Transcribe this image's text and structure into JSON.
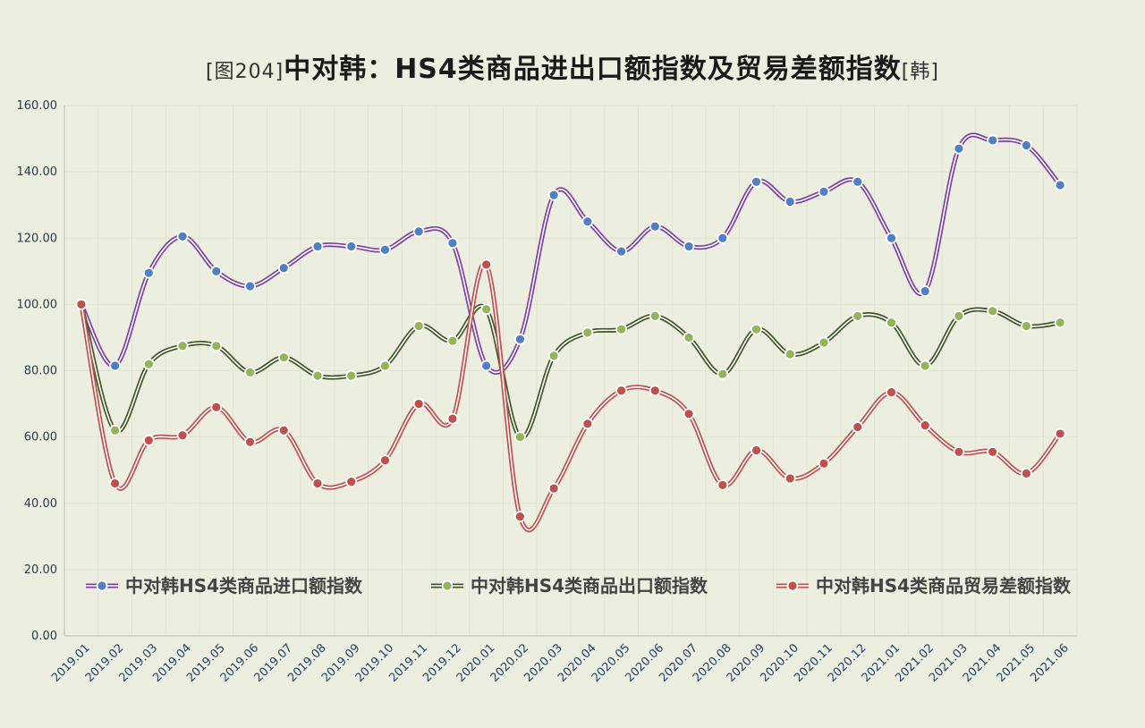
{
  "chart_data": {
    "type": "line",
    "title_prefix": "[图204]",
    "title_main": "中对韩：HS4类商品进出口额指数及贸易差额指数",
    "title_suffix": "[韩]",
    "x": [
      "2019.01",
      "2019.02",
      "2019.03",
      "2019.04",
      "2019.05",
      "2019.06",
      "2019.07",
      "2019.08",
      "2019.09",
      "2019.10",
      "2019.11",
      "2019.12",
      "2020.01",
      "2020.02",
      "2020.03",
      "2020.04",
      "2020.05",
      "2020.06",
      "2020.07",
      "2020.08",
      "2020.09",
      "2020.10",
      "2020.11",
      "2020.12",
      "2021.01",
      "2021.02",
      "2021.03",
      "2021.04",
      "2021.05",
      "2021.06"
    ],
    "ylim": [
      0,
      160
    ],
    "yticks": [
      "0.00",
      "20.00",
      "40.00",
      "60.00",
      "80.00",
      "100.00",
      "120.00",
      "140.00",
      "160.00"
    ],
    "grid": true,
    "legend_position": "bottom-inside",
    "series": [
      {
        "name": "中对韩HS4类商品进口额指数",
        "line_color": "#7b3fa6",
        "marker_color": "#4f7fc4",
        "values": [
          100,
          81.5,
          109.5,
          120.5,
          110,
          105.5,
          111,
          117.5,
          117.5,
          116.5,
          122,
          118.5,
          81.5,
          89.5,
          133,
          125,
          116,
          123.5,
          117.5,
          120,
          137,
          131,
          134,
          137,
          120,
          104,
          147,
          149.5,
          148,
          136
        ]
      },
      {
        "name": "中对韩HS4类商品出口额指数",
        "line_color": "#3f5526",
        "marker_color": "#93b55a",
        "values": [
          100,
          62,
          82,
          87.5,
          87.5,
          79.5,
          84,
          78.5,
          78.5,
          81.5,
          93.5,
          89,
          98.5,
          60,
          84.5,
          91.5,
          92.5,
          96.5,
          90,
          79,
          92.5,
          85,
          88.5,
          96.5,
          94.5,
          81.5,
          96.5,
          98,
          93.5,
          94.5
        ]
      },
      {
        "name": "中对韩HS4类商品贸易差额指数",
        "line_color": "#c0504d",
        "marker_color": "#c0504d",
        "values": [
          100,
          46,
          59,
          60.5,
          69,
          58.5,
          62,
          46,
          46.5,
          53,
          70,
          65.5,
          112,
          36,
          44.5,
          64,
          74,
          74,
          67,
          45.5,
          56,
          47.5,
          52,
          63,
          73.5,
          63.5,
          55.5,
          55.5,
          49,
          61
        ]
      }
    ]
  }
}
